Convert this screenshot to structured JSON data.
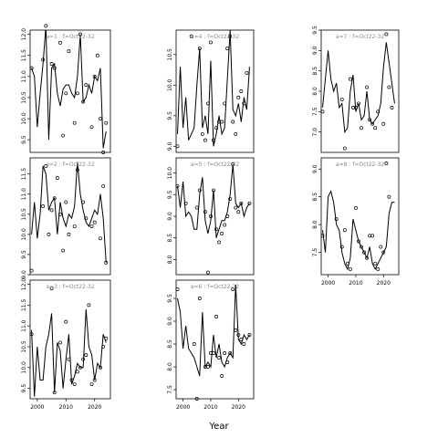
{
  "chart_data": {
    "type": "line",
    "xlabel": "Year",
    "panels": [
      {
        "label": "a=1 : f=Oct22-32",
        "xlim": [
          1997.5,
          2025.5
        ],
        "ylim": [
          9.2,
          12.1
        ],
        "yticks": [
          9.5,
          10.0,
          10.5,
          11.0,
          11.5,
          12.0
        ],
        "x": [
          1998,
          1999,
          2000,
          2001,
          2002,
          2003,
          2004,
          2005,
          2006,
          2007,
          2008,
          2009,
          2010,
          2011,
          2012,
          2013,
          2014,
          2015,
          2016,
          2017,
          2018,
          2019,
          2020,
          2021,
          2022,
          2023,
          2024
        ],
        "line": [
          11.2,
          11.0,
          9.8,
          10.6,
          11.3,
          12.2,
          9.5,
          11.2,
          11.3,
          10.6,
          10.3,
          10.7,
          10.8,
          10.8,
          10.6,
          10.5,
          11.0,
          12.0,
          10.4,
          10.5,
          10.8,
          10.6,
          11.0,
          10.9,
          11.2,
          9.3,
          9.7
        ],
        "points": [
          11.2,
          null,
          null,
          null,
          11.4,
          12.2,
          null,
          11.3,
          11.2,
          null,
          11.8,
          9.6,
          10.6,
          11.6,
          null,
          9.9,
          10.6,
          12.0,
          10.4,
          10.8,
          null,
          9.8,
          11.0,
          11.5,
          10.0,
          9.2,
          9.9
        ]
      },
      {
        "label": "a=2 : f=Oct22-32",
        "xlim": [
          1997.5,
          2025.5
        ],
        "ylim": [
          9.0,
          11.9
        ],
        "yticks": [
          9.0,
          9.5,
          10.0,
          10.5,
          11.0,
          11.5
        ],
        "x": [
          1998,
          1999,
          2000,
          2001,
          2002,
          2003,
          2004,
          2005,
          2006,
          2007,
          2008,
          2009,
          2010,
          2011,
          2012,
          2013,
          2014,
          2015,
          2016,
          2017,
          2018,
          2019,
          2020,
          2021,
          2022,
          2023,
          2024
        ],
        "line": [
          10.0,
          10.8,
          9.9,
          10.5,
          11.7,
          11.5,
          10.6,
          10.8,
          10.9,
          10.0,
          10.8,
          10.4,
          10.2,
          10.5,
          10.4,
          10.7,
          11.8,
          11.0,
          10.6,
          10.3,
          10.2,
          10.4,
          10.6,
          10.5,
          11.0,
          10.4,
          9.3
        ],
        "points": [
          9.1,
          null,
          null,
          null,
          10.7,
          11.7,
          10.0,
          10.6,
          10.9,
          11.4,
          10.5,
          9.6,
          10.8,
          10.0,
          null,
          10.2,
          11.6,
          null,
          10.8,
          10.4,
          null,
          10.2,
          10.3,
          null,
          9.9,
          11.2,
          9.3
        ]
      },
      {
        "label": "a=3 : f=Oct22-32",
        "xlim": [
          1997.5,
          2025.5
        ],
        "ylim": [
          9.25,
          12.1
        ],
        "yticks": [
          9.5,
          10.0,
          10.5,
          11.0,
          11.5,
          12.0
        ],
        "x": [
          1998,
          1999,
          2000,
          2001,
          2002,
          2003,
          2004,
          2005,
          2006,
          2007,
          2008,
          2009,
          2010,
          2011,
          2012,
          2013,
          2014,
          2015,
          2016,
          2017,
          2018,
          2019,
          2020,
          2021,
          2022,
          2023,
          2024
        ],
        "line": [
          10.9,
          9.3,
          10.5,
          9.7,
          9.7,
          10.5,
          10.8,
          11.3,
          9.4,
          10.6,
          10.4,
          9.5,
          10.2,
          10.8,
          9.6,
          9.8,
          10.1,
          10.0,
          10.0,
          11.4,
          10.5,
          10.3,
          9.7,
          10.1,
          10.0,
          10.8,
          10.6
        ],
        "points": [
          10.8,
          null,
          null,
          null,
          null,
          null,
          null,
          11.9,
          9.4,
          null,
          10.6,
          null,
          11.1,
          10.2,
          9.7,
          9.6,
          9.9,
          10.0,
          10.2,
          10.3,
          11.5,
          9.6,
          9.7,
          null,
          10.0,
          10.5,
          10.7
        ]
      },
      {
        "label": "a=4 : f=Oct22-32",
        "xlim": [
          1997.5,
          2025.5
        ],
        "ylim": [
          8.9,
          10.9
        ],
        "yticks": [
          9.0,
          9.5,
          10.0,
          10.5
        ],
        "x": [
          1998,
          1999,
          2000,
          2001,
          2002,
          2003,
          2004,
          2005,
          2006,
          2007,
          2008,
          2009,
          2010,
          2011,
          2012,
          2013,
          2014,
          2015,
          2016,
          2017,
          2018,
          2019,
          2020,
          2021,
          2022,
          2023,
          2024
        ],
        "line": [
          9.2,
          10.3,
          9.3,
          9.8,
          9.1,
          9.2,
          9.3,
          10.0,
          10.6,
          9.3,
          9.5,
          9.2,
          10.4,
          9.0,
          9.2,
          9.5,
          9.2,
          9.3,
          10.1,
          10.9,
          9.6,
          9.5,
          9.7,
          9.4,
          9.8,
          9.6,
          10.3
        ],
        "points": [
          9.0,
          null,
          null,
          null,
          null,
          10.8,
          null,
          null,
          10.6,
          9.2,
          9.1,
          9.7,
          10.7,
          9.1,
          9.3,
          9.4,
          9.4,
          9.7,
          10.6,
          10.8,
          9.4,
          9.2,
          9.8,
          9.9,
          9.7,
          10.2,
          null
        ]
      },
      {
        "label": "a=5 : f=Oct22-32",
        "xlim": [
          1997.5,
          2025.5
        ],
        "ylim": [
          7.65,
          10.35
        ],
        "yticks": [
          8.0,
          8.5,
          9.0,
          9.5,
          10.0
        ],
        "x": [
          1998,
          1999,
          2000,
          2001,
          2002,
          2003,
          2004,
          2005,
          2006,
          2007,
          2008,
          2009,
          2010,
          2011,
          2012,
          2013,
          2014,
          2015,
          2016,
          2017,
          2018,
          2019,
          2020,
          2021,
          2022,
          2023,
          2024
        ],
        "line": [
          9.7,
          9.2,
          9.8,
          9.0,
          9.1,
          9.0,
          8.7,
          8.7,
          9.5,
          9.9,
          8.9,
          8.6,
          8.9,
          9.6,
          8.5,
          8.7,
          8.9,
          8.9,
          9.1,
          9.5,
          10.2,
          9.3,
          9.2,
          9.3,
          9.0,
          9.2,
          9.3
        ],
        "points": [
          9.7,
          null,
          null,
          9.3,
          null,
          null,
          null,
          9.2,
          9.6,
          null,
          9.1,
          7.7,
          9.0,
          9.6,
          8.7,
          8.4,
          8.6,
          8.8,
          9.0,
          9.4,
          10.2,
          9.2,
          9.1,
          9.3,
          null,
          null,
          9.3
        ]
      },
      {
        "label": "a=6 : f=Oct22-32",
        "xlim": [
          1997.5,
          2025.5
        ],
        "ylim": [
          7.3,
          9.9
        ],
        "yticks": [
          7.5,
          8.0,
          8.5,
          9.0,
          9.5
        ],
        "x": [
          1998,
          1999,
          2000,
          2001,
          2002,
          2003,
          2004,
          2005,
          2006,
          2007,
          2008,
          2009,
          2010,
          2011,
          2012,
          2013,
          2014,
          2015,
          2016,
          2017,
          2018,
          2019,
          2020,
          2021,
          2022,
          2023,
          2024
        ],
        "line": [
          9.5,
          9.2,
          8.4,
          8.9,
          8.4,
          8.3,
          8.2,
          8.0,
          7.8,
          9.2,
          8.0,
          8.1,
          8.0,
          8.7,
          8.2,
          8.5,
          8.1,
          8.0,
          8.2,
          8.3,
          8.2,
          9.8,
          8.6,
          8.5,
          8.7,
          8.6,
          8.7
        ],
        "points": [
          9.7,
          null,
          null,
          null,
          null,
          null,
          8.5,
          7.3,
          9.5,
          null,
          8.0,
          8.0,
          8.3,
          8.3,
          9.1,
          8.2,
          7.8,
          8.3,
          8.1,
          8.3,
          9.7,
          8.8,
          8.7,
          8.6,
          8.5,
          null,
          8.7
        ]
      },
      {
        "label": "a=7 : f=Oct22-32",
        "xlim": [
          1997.5,
          2025.5
        ],
        "ylim": [
          6.5,
          9.5
        ],
        "yticks": [
          7.0,
          7.5,
          8.0,
          8.5,
          9.0,
          9.5
        ],
        "x": [
          1998,
          1999,
          2000,
          2001,
          2002,
          2003,
          2004,
          2005,
          2006,
          2007,
          2008,
          2009,
          2010,
          2011,
          2012,
          2013,
          2014,
          2015,
          2016,
          2017,
          2018,
          2019,
          2020,
          2021,
          2022,
          2023,
          2024
        ],
        "line": [
          7.6,
          8.3,
          9.0,
          8.3,
          8.0,
          8.2,
          7.6,
          7.7,
          7.0,
          7.1,
          8.0,
          8.4,
          7.5,
          7.7,
          7.3,
          7.4,
          8.0,
          7.3,
          7.2,
          7.3,
          7.4,
          7.7,
          8.6,
          9.2,
          8.7,
          8.2,
          7.7
        ],
        "points": [
          7.5,
          null,
          null,
          null,
          null,
          null,
          null,
          7.8,
          6.6,
          null,
          8.3,
          7.6,
          7.6,
          7.7,
          7.1,
          null,
          8.1,
          7.3,
          7.2,
          7.1,
          7.5,
          null,
          7.2,
          9.4,
          8.1,
          7.6,
          null
        ]
      },
      {
        "label": "a=8 : f=Oct22-32",
        "xlim": [
          1997.5,
          2025.5
        ],
        "ylim": [
          7.1,
          9.2
        ],
        "yticks": [
          7.5,
          8.0,
          8.5,
          9.0
        ],
        "x": [
          1998,
          1999,
          2000,
          2001,
          2002,
          2003,
          2004,
          2005,
          2006,
          2007,
          2008,
          2009,
          2010,
          2011,
          2012,
          2013,
          2014,
          2015,
          2016,
          2017,
          2018,
          2019,
          2020,
          2021,
          2022,
          2023,
          2024
        ],
        "line": [
          7.9,
          7.5,
          8.5,
          8.6,
          8.4,
          8.0,
          7.9,
          7.5,
          7.3,
          7.2,
          7.4,
          8.1,
          7.9,
          7.7,
          7.6,
          7.5,
          7.4,
          7.6,
          7.3,
          7.2,
          7.3,
          7.4,
          7.5,
          7.6,
          8.2,
          8.4,
          8.4
        ],
        "points": [
          7.8,
          null,
          null,
          null,
          null,
          8.1,
          null,
          7.6,
          7.9,
          7.3,
          7.2,
          null,
          8.3,
          7.7,
          7.6,
          7.5,
          7.4,
          7.8,
          7.8,
          7.3,
          7.2,
          7.6,
          7.5,
          9.1,
          8.5,
          null,
          null
        ]
      }
    ]
  }
}
